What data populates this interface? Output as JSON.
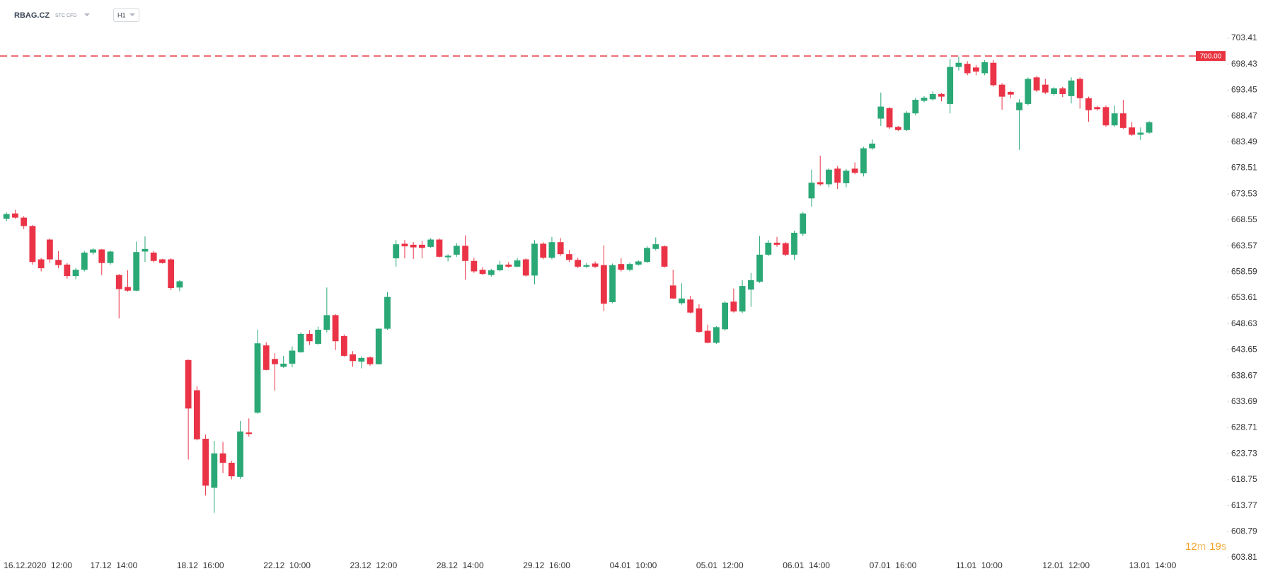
{
  "header": {
    "symbol": "RBAG.CZ",
    "instrument_type": "STC CFD",
    "timeframe": "H1"
  },
  "countdown": {
    "minutes": 12,
    "minutes_unit": "m",
    "seconds": 19,
    "seconds_unit": "s"
  },
  "chart_data": {
    "type": "candlestick",
    "categories": [
      "16.12.2020  12:00",
      null,
      null,
      null,
      null,
      null,
      null,
      null,
      null,
      null,
      "17.12  14:00",
      null,
      null,
      null,
      null,
      null,
      null,
      null,
      null,
      null,
      "18.12  16:00",
      null,
      null,
      null,
      null,
      null,
      null,
      null,
      null,
      null,
      "22.12  10:00",
      null,
      null,
      null,
      null,
      null,
      null,
      null,
      null,
      null,
      "23.12  12:00",
      null,
      null,
      null,
      null,
      null,
      null,
      null,
      null,
      null,
      "28.12  14:00",
      null,
      null,
      null,
      null,
      null,
      null,
      null,
      null,
      null,
      "29.12  16:00",
      null,
      null,
      null,
      null,
      null,
      null,
      null,
      null,
      null,
      "04.01  10:00",
      null,
      null,
      null,
      null,
      null,
      null,
      null,
      null,
      null,
      "05.01  12:00",
      null,
      null,
      null,
      null,
      null,
      null,
      null,
      null,
      null,
      "06.01  14:00",
      null,
      null,
      null,
      null,
      null,
      null,
      null,
      null,
      null,
      "07.01  16:00",
      null,
      null,
      null,
      null,
      null,
      null,
      null,
      null,
      null,
      "11.01  10:00",
      null,
      null,
      null,
      null,
      null,
      null,
      null,
      null,
      null,
      "12.01  12:00",
      null,
      null,
      null,
      null,
      null,
      null,
      null,
      null,
      null,
      "13.01  14:00",
      null,
      null
    ],
    "open": [
      668.8,
      669.8,
      669.0,
      667.4,
      661.0,
      664.8,
      660.9,
      660.0,
      657.8,
      659.0,
      662.3,
      662.9,
      660.3,
      658.0,
      655.7,
      655.0,
      662.5,
      662.3,
      661.0,
      661.0,
      655.6,
      641.7,
      635.9,
      626.6,
      617.2,
      623.8,
      622.0,
      619.3,
      627.8,
      631.6,
      644.5,
      641.9,
      640.4,
      641.0,
      643.2,
      646.7,
      644.8,
      647.5,
      650.3,
      646.3,
      642.8,
      641.4,
      642.2,
      640.9,
      647.7,
      661.2,
      664.0,
      663.8,
      663.8,
      663.4,
      664.8,
      661.4,
      661.9,
      663.6,
      660.7,
      659.0,
      658.0,
      658.9,
      660.0,
      659.6,
      661.0,
      657.9,
      664.0,
      661.3,
      664.3,
      662.0,
      660.9,
      659.6,
      660.2,
      659.9,
      652.8,
      660.1,
      659.0,
      660.0,
      660.5,
      663.0,
      663.5,
      656.0,
      652.6,
      653.3,
      651.6,
      647.3,
      645.0,
      647.6,
      652.9,
      651.0,
      655.2,
      656.7,
      661.9,
      664.2,
      664.1,
      661.9,
      665.9,
      672.7,
      675.8,
      675.4,
      678.4,
      675.6,
      678.4,
      677.5,
      682.3,
      688.0,
      690.0,
      686.4,
      685.8,
      689.0,
      691.4,
      691.7,
      692.7,
      690.8,
      697.9,
      698.5,
      697.8,
      696.7,
      698.7,
      694.5,
      693.1,
      689.6,
      690.8,
      695.9,
      694.5,
      692.7,
      693.8,
      692.3,
      695.6,
      691.9,
      690.2,
      690.2,
      686.7,
      689.0,
      686.3,
      684.9,
      685.3
    ],
    "high": [
      670.0,
      670.5,
      669.3,
      667.6,
      661.3,
      665.0,
      662.6,
      660.3,
      659.3,
      662.6,
      663.2,
      663.0,
      662.7,
      658.2,
      658.9,
      664.4,
      665.4,
      662.6,
      661.1,
      661.2,
      657.0,
      641.8,
      636.7,
      627.4,
      626.2,
      626.0,
      622.4,
      630.0,
      630.5,
      647.5,
      645.1,
      643.0,
      642.5,
      644.3,
      647.0,
      647.4,
      648.1,
      655.6,
      650.5,
      646.6,
      643.4,
      642.4,
      642.4,
      647.8,
      654.7,
      664.7,
      664.7,
      664.3,
      664.5,
      665.1,
      665.0,
      662.0,
      664.1,
      665.6,
      661.3,
      659.5,
      659.2,
      660.7,
      660.5,
      661.3,
      661.2,
      664.7,
      664.3,
      665.3,
      665.1,
      662.8,
      661.3,
      660.3,
      660.6,
      663.7,
      660.2,
      661.2,
      660.4,
      660.8,
      663.5,
      665.2,
      663.7,
      659.0,
      656.4,
      654.0,
      652.4,
      648.5,
      648.2,
      653.0,
      655.4,
      657.0,
      658.4,
      665.5,
      664.7,
      665.3,
      664.3,
      666.5,
      670.1,
      678.2,
      680.9,
      678.5,
      678.9,
      678.3,
      679.6,
      682.6,
      684.0,
      693.0,
      690.2,
      686.6,
      689.4,
      692.0,
      692.3,
      693.2,
      692.9,
      699.4,
      699.9,
      699.0,
      698.3,
      699.2,
      699.2,
      694.8,
      693.3,
      691.7,
      695.9,
      696.2,
      695.6,
      694.0,
      694.1,
      695.9,
      695.9,
      692.2,
      690.4,
      690.5,
      690.5,
      691.6,
      687.3,
      686.3,
      687.5
    ],
    "low": [
      668.3,
      668.8,
      666.8,
      660.0,
      658.7,
      660.3,
      659.3,
      657.3,
      657.2,
      658.7,
      661.9,
      658.0,
      660.0,
      649.7,
      654.8,
      654.9,
      660.5,
      660.4,
      660.2,
      655.1,
      654.9,
      622.6,
      626.3,
      615.7,
      612.4,
      620.0,
      618.8,
      618.9,
      627.0,
      631.4,
      639.7,
      635.8,
      640.2,
      640.3,
      643.1,
      644.6,
      644.6,
      647.0,
      643.6,
      642.3,
      640.4,
      640.1,
      640.6,
      640.8,
      647.5,
      659.6,
      661.2,
      661.1,
      661.2,
      663.2,
      661.4,
      660.6,
      661.5,
      657.1,
      658.4,
      658.0,
      657.7,
      658.7,
      659.4,
      659.5,
      657.7,
      656.2,
      661.0,
      661.0,
      661.7,
      660.5,
      659.3,
      659.3,
      659.3,
      651.1,
      652.6,
      658.7,
      658.7,
      659.8,
      660.3,
      662.7,
      659.4,
      653.4,
      652.3,
      650.6,
      646.9,
      644.9,
      644.8,
      647.3,
      650.8,
      650.7,
      651.9,
      656.5,
      661.6,
      663.4,
      661.6,
      660.9,
      665.5,
      671.1,
      675.1,
      674.8,
      674.5,
      674.8,
      677.3,
      676.9,
      682.0,
      686.6,
      686.0,
      685.6,
      685.6,
      688.6,
      691.1,
      691.4,
      691.3,
      689.0,
      697.2,
      696.3,
      696.3,
      696.3,
      694.1,
      689.7,
      691.9,
      682.0,
      690.5,
      693.1,
      692.7,
      692.4,
      692.1,
      690.9,
      689.9,
      687.4,
      689.5,
      686.4,
      686.4,
      686.0,
      684.7,
      683.9,
      685.1
    ],
    "close": [
      669.7,
      669.0,
      667.4,
      660.5,
      659.3,
      661.0,
      659.9,
      657.8,
      659.0,
      662.3,
      662.9,
      660.3,
      662.5,
      655.3,
      655.0,
      662.4,
      663.0,
      660.7,
      660.3,
      655.5,
      656.8,
      632.4,
      626.5,
      617.6,
      623.8,
      622.0,
      619.4,
      628.0,
      627.5,
      644.9,
      639.8,
      640.9,
      641.0,
      643.5,
      646.7,
      645.3,
      647.5,
      650.3,
      645.3,
      642.5,
      641.5,
      642.1,
      640.9,
      647.7,
      653.8,
      663.9,
      663.5,
      663.3,
      663.2,
      664.8,
      661.5,
      661.7,
      663.6,
      660.7,
      658.7,
      658.2,
      658.9,
      660.0,
      659.6,
      660.8,
      657.9,
      664.0,
      661.3,
      664.3,
      662.0,
      660.9,
      659.6,
      659.9,
      659.6,
      652.5,
      659.9,
      659.0,
      660.1,
      660.6,
      663.2,
      663.9,
      659.6,
      653.5,
      653.5,
      650.8,
      647.1,
      645.0,
      648.0,
      652.7,
      651.0,
      655.9,
      657.0,
      661.9,
      664.2,
      663.8,
      661.9,
      666.1,
      669.8,
      675.7,
      675.4,
      678.2,
      675.7,
      678.0,
      677.6,
      682.3,
      683.2,
      690.3,
      686.3,
      685.8,
      689.1,
      691.6,
      692.0,
      692.7,
      692.2,
      697.9,
      698.7,
      696.7,
      697.0,
      698.8,
      694.4,
      692.2,
      692.6,
      691.1,
      695.6,
      693.4,
      693.0,
      693.8,
      692.7,
      695.3,
      691.9,
      689.6,
      689.8,
      686.7,
      689.0,
      686.2,
      684.9,
      685.3,
      687.3
    ],
    "up_color": "#2aa876",
    "down_color": "#ea3346",
    "ylim": [
      603.81,
      703.41
    ],
    "yticks": [
      603.81,
      608.79,
      613.77,
      618.75,
      623.73,
      628.71,
      633.69,
      638.67,
      643.65,
      648.63,
      653.61,
      658.59,
      663.57,
      668.55,
      673.53,
      678.51,
      683.49,
      688.47,
      693.45,
      698.43,
      703.41
    ],
    "price_line": {
      "value": 700,
      "label": "700.00",
      "color": "#e8333f"
    }
  }
}
